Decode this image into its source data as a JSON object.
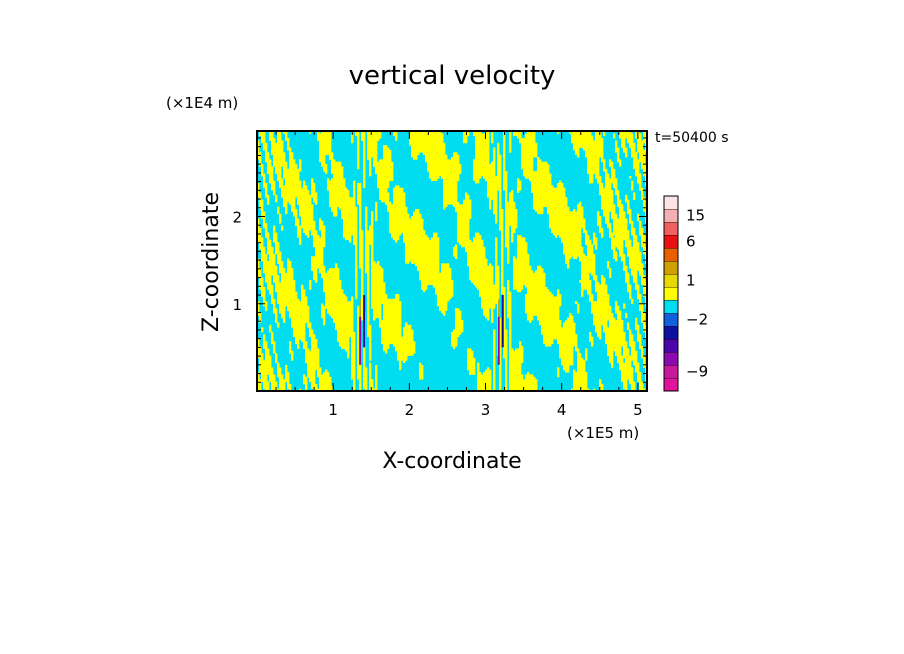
{
  "chart_data": {
    "type": "heatmap",
    "title": "vertical velocity",
    "xlabel": "X-coordinate",
    "ylabel": "Z-coordinate",
    "x_unit": "(×1E5 m)",
    "y_unit": "(×1E4 m)",
    "time_label": "t=50400 s",
    "xlim": [
      0,
      5.12
    ],
    "ylim": [
      0,
      2.98
    ],
    "x_ticks": [
      1,
      2,
      3,
      4,
      5
    ],
    "y_ticks": [
      1,
      2
    ],
    "grid": false,
    "colorbar": {
      "levels": [
        {
          "lo": -12,
          "hi": -9,
          "color": "#e0149a"
        },
        {
          "lo": -9,
          "hi": -6,
          "color": "#c8189e"
        },
        {
          "lo": -6,
          "hi": -4,
          "color": "#8a0ab0"
        },
        {
          "lo": -4,
          "hi": -3,
          "color": "#4a06a8"
        },
        {
          "lo": -3,
          "hi": -2,
          "color": "#1010a0"
        },
        {
          "lo": -2,
          "hi": -1,
          "color": "#1060e0"
        },
        {
          "lo": -1,
          "hi": 0,
          "color": "#00ddf0"
        },
        {
          "lo": 0,
          "hi": 1,
          "color": "#ffff00"
        },
        {
          "lo": 1,
          "hi": 2,
          "color": "#e8d800"
        },
        {
          "lo": 2,
          "hi": 3,
          "color": "#d0a000"
        },
        {
          "lo": 3,
          "hi": 6,
          "color": "#e86000"
        },
        {
          "lo": 6,
          "hi": 10,
          "color": "#e81010"
        },
        {
          "lo": 10,
          "hi": 15,
          "color": "#f06060"
        },
        {
          "lo": 15,
          "hi": 20,
          "color": "#f4b0b0"
        },
        {
          "lo": 20,
          "hi": 25,
          "color": "#fde4e4"
        }
      ],
      "tick_labels": [
        {
          "value": 15,
          "label": "15"
        },
        {
          "value": 6,
          "label": "6"
        },
        {
          "value": 1,
          "label": "1"
        },
        {
          "value": -2,
          "label": "−2"
        },
        {
          "value": -9,
          "label": "−9"
        }
      ]
    },
    "field_colors": {
      "positive": "#ffff00",
      "negative": "#00ddf0"
    },
    "updraft_cores_x": [
      1.38,
      3.2
    ]
  }
}
